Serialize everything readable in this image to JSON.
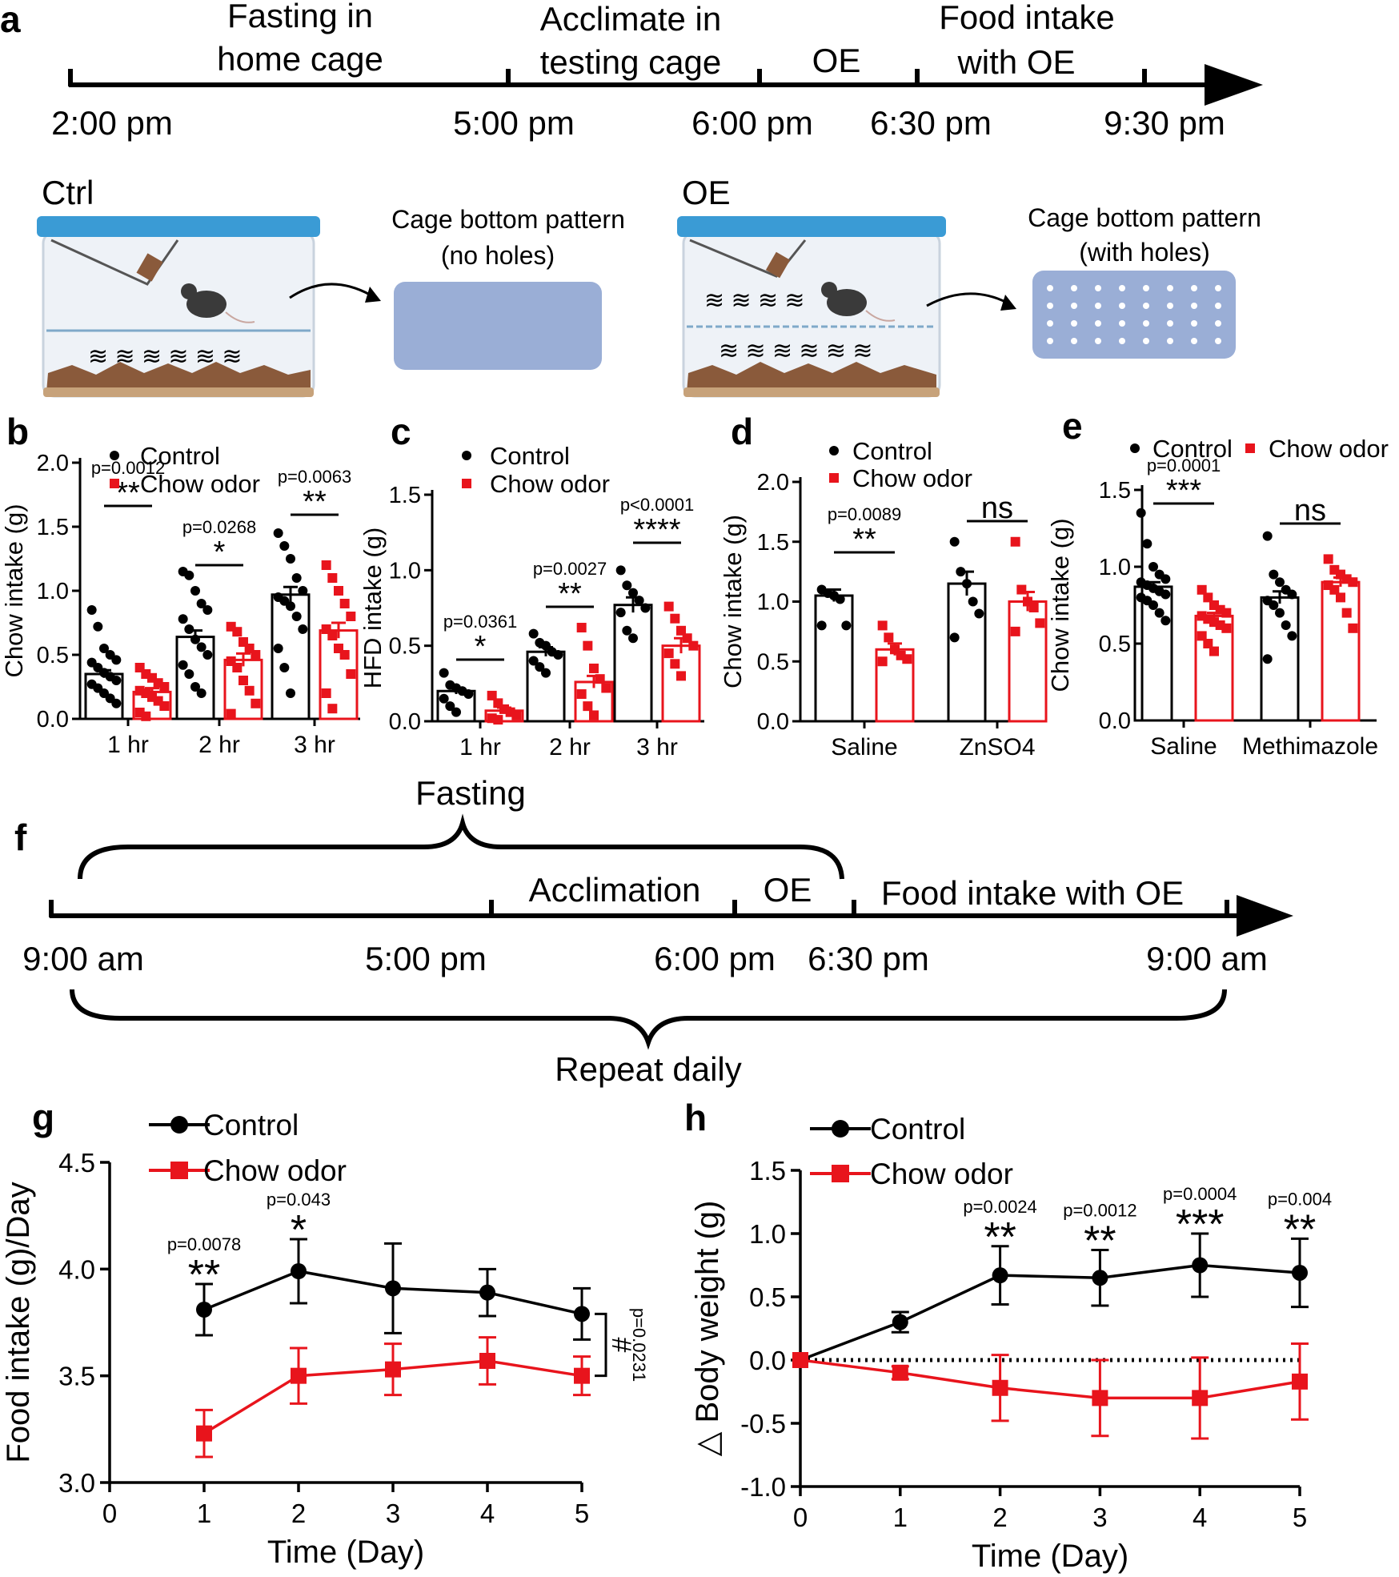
{
  "panel_a": {
    "letter": "a",
    "phases": [
      [
        "Fasting in",
        "home cage"
      ],
      [
        "Acclimate in",
        "testing cage"
      ],
      [
        "OE"
      ],
      [
        "Food intake",
        "with OE"
      ]
    ],
    "times": [
      "2:00 pm",
      "5:00 pm",
      "6:00 pm",
      "6:30 pm",
      "9:30 pm"
    ],
    "cage_ctrl_label": "Ctrl",
    "cage_oe_label": "OE",
    "pattern_ctrl": [
      "Cage bottom pattern",
      "(no holes)"
    ],
    "pattern_oe": [
      "Cage bottom pattern",
      "(with holes)"
    ],
    "colors": {
      "lid": "#3a9bd5",
      "pattern": "#9aaed6",
      "bedding": "#8a5a3b"
    }
  },
  "panel_f": {
    "letter": "f",
    "top_label": "Fasting",
    "phases": [
      "Acclimation",
      "OE",
      "Food intake with OE"
    ],
    "times": [
      "9:00 am",
      "5:00 pm",
      "6:00 pm",
      "6:30 pm",
      "9:00 am"
    ],
    "bottom_label": "Repeat daily"
  },
  "legend": {
    "control": "Control",
    "chow_odor": "Chow odor"
  },
  "colors": {
    "control": "#000000",
    "chow_odor": "#e8141c"
  },
  "chart_data": [
    {
      "id": "b",
      "letter": "b",
      "type": "bar",
      "ylabel": "Chow intake (g)",
      "ylim": [
        0,
        2.0
      ],
      "yticks": [
        "0.0",
        "0.5",
        "1.0",
        "1.5",
        "2.0"
      ],
      "categories": [
        "1 hr",
        "2 hr",
        "3 hr"
      ],
      "series": [
        {
          "name": "Control",
          "values": [
            0.35,
            0.64,
            0.97
          ]
        },
        {
          "name": "Chow odor",
          "values": [
            0.21,
            0.46,
            0.69
          ]
        }
      ],
      "errors": [
        [
          0.03,
          0.05,
          0.06
        ],
        [
          0.03,
          0.05,
          0.06
        ]
      ],
      "points": [
        [
          [
            0.85,
            0.72,
            0.55,
            0.5,
            0.46,
            0.44,
            0.4,
            0.36,
            0.33,
            0.3,
            0.27,
            0.24,
            0.2,
            0.16,
            0.12
          ],
          [
            1.15,
            1.12,
            1.0,
            0.9,
            0.85,
            0.78,
            0.7,
            0.62,
            0.56,
            0.5,
            0.42,
            0.35,
            0.25,
            0.2
          ],
          [
            1.45,
            1.35,
            1.25,
            1.1,
            1.0,
            0.95,
            0.92,
            0.88,
            0.8,
            0.7,
            0.55,
            0.4,
            0.2
          ]
        ],
        [
          [
            0.4,
            0.35,
            0.32,
            0.28,
            0.25,
            0.22,
            0.2,
            0.17,
            0.14,
            0.1,
            0.05,
            0.02
          ],
          [
            0.72,
            0.68,
            0.6,
            0.55,
            0.5,
            0.45,
            0.4,
            0.3,
            0.22,
            0.12,
            0.04
          ],
          [
            1.2,
            1.1,
            1.0,
            0.9,
            0.8,
            0.7,
            0.65,
            0.55,
            0.5,
            0.35,
            0.2,
            0.08
          ]
        ]
      ],
      "annotations": [
        {
          "group": 0,
          "p": "p=0.0012",
          "sig": "**"
        },
        {
          "group": 1,
          "p": "p=0.0268",
          "sig": "*"
        },
        {
          "group": 2,
          "p": "p=0.0063",
          "sig": "**"
        }
      ],
      "legend_position": "top-left"
    },
    {
      "id": "c",
      "letter": "c",
      "type": "bar",
      "ylabel": "HFD intake (g)",
      "ylim": [
        0,
        1.5
      ],
      "yticks": [
        "0.0",
        "0.5",
        "1.0",
        "1.5"
      ],
      "categories": [
        "1 hr",
        "2 hr",
        "3 hr"
      ],
      "series": [
        {
          "name": "Control",
          "values": [
            0.2,
            0.46,
            0.77
          ]
        },
        {
          "name": "Chow odor",
          "values": [
            0.07,
            0.26,
            0.5
          ]
        }
      ],
      "errors": [
        [
          0.02,
          0.03,
          0.05
        ],
        [
          0.02,
          0.04,
          0.05
        ]
      ],
      "points": [
        [
          [
            0.32,
            0.24,
            0.22,
            0.2,
            0.18,
            0.15,
            0.1,
            0.06
          ],
          [
            0.58,
            0.52,
            0.5,
            0.46,
            0.44,
            0.4,
            0.36,
            0.32
          ],
          [
            1.0,
            0.9,
            0.85,
            0.8,
            0.75,
            0.72,
            0.6,
            0.55
          ]
        ],
        [
          [
            0.17,
            0.12,
            0.08,
            0.06,
            0.04,
            0.02,
            0.01
          ],
          [
            0.62,
            0.5,
            0.35,
            0.28,
            0.22,
            0.18,
            0.1,
            0.04
          ],
          [
            0.76,
            0.68,
            0.6,
            0.55,
            0.5,
            0.45,
            0.38,
            0.3
          ]
        ]
      ],
      "annotations": [
        {
          "group": 0,
          "p": "p=0.0361",
          "sig": "*"
        },
        {
          "group": 1,
          "p": "p=0.0027",
          "sig": "**"
        },
        {
          "group": 2,
          "p": "p<0.0001",
          "sig": "****"
        }
      ],
      "legend_position": "top-left"
    },
    {
      "id": "d",
      "letter": "d",
      "type": "bar",
      "ylabel": "Chow intake (g)",
      "ylim": [
        0,
        2.0
      ],
      "yticks": [
        "0.0",
        "0.5",
        "1.0",
        "1.5",
        "2.0"
      ],
      "categories": [
        "Saline",
        "ZnSO4"
      ],
      "series": [
        {
          "name": "Control",
          "values": [
            1.05,
            1.15
          ]
        },
        {
          "name": "Chow odor",
          "values": [
            0.6,
            1.0
          ]
        }
      ],
      "errors": [
        [
          0.05,
          0.1
        ],
        [
          0.05,
          0.08
        ]
      ],
      "points": [
        [
          [
            1.1,
            1.07,
            1.05,
            1.02,
            0.8,
            0.8
          ],
          [
            1.5,
            1.25,
            1.15,
            1.0,
            0.9,
            0.7
          ]
        ],
        [
          [
            0.8,
            0.7,
            0.6,
            0.55,
            0.52,
            0.5
          ],
          [
            1.5,
            1.1,
            1.0,
            0.95,
            0.82,
            0.75
          ]
        ]
      ],
      "annotations": [
        {
          "group": 0,
          "p": "p=0.0089",
          "sig": "**"
        },
        {
          "group": 1,
          "p": "",
          "sig": "ns"
        }
      ],
      "legend_position": "top-left"
    },
    {
      "id": "e",
      "letter": "e",
      "type": "bar",
      "ylabel": "Chow intake (g)",
      "ylim": [
        0,
        1.5
      ],
      "yticks": [
        "0.0",
        "0.5",
        "1.0",
        "1.5"
      ],
      "categories": [
        "Saline",
        "Methimazole"
      ],
      "series": [
        {
          "name": "Control",
          "values": [
            0.87,
            0.8
          ]
        },
        {
          "name": "Chow odor",
          "values": [
            0.68,
            0.9
          ]
        }
      ],
      "errors": [
        [
          0.03,
          0.04
        ],
        [
          0.02,
          0.03
        ]
      ],
      "points": [
        [
          [
            1.35,
            1.15,
            1.0,
            0.95,
            0.92,
            0.9,
            0.88,
            0.86,
            0.84,
            0.82,
            0.8,
            0.78,
            0.75,
            0.7,
            0.65
          ],
          [
            1.2,
            0.95,
            0.9,
            0.85,
            0.82,
            0.78,
            0.75,
            0.7,
            0.62,
            0.55,
            0.4
          ]
        ],
        [
          [
            0.85,
            0.8,
            0.75,
            0.72,
            0.7,
            0.68,
            0.66,
            0.64,
            0.62,
            0.6,
            0.55,
            0.5,
            0.45
          ],
          [
            1.05,
            0.98,
            0.95,
            0.92,
            0.9,
            0.88,
            0.85,
            0.8,
            0.7,
            0.6
          ]
        ]
      ],
      "annotations": [
        {
          "group": 0,
          "p": "p=0.0001",
          "sig": "***"
        },
        {
          "group": 1,
          "p": "",
          "sig": "ns"
        }
      ],
      "legend_position": "top"
    },
    {
      "id": "g",
      "letter": "g",
      "type": "line",
      "xlabel": "Time (Day)",
      "ylabel": "Food intake (g)/Day",
      "xlim": [
        0,
        5
      ],
      "ylim": [
        3.0,
        4.5
      ],
      "xticks": [
        "0",
        "1",
        "2",
        "3",
        "4",
        "5"
      ],
      "yticks": [
        "3.0",
        "3.5",
        "4.0",
        "4.5"
      ],
      "x": [
        1,
        2,
        3,
        4,
        5
      ],
      "series": [
        {
          "name": "Control",
          "values": [
            3.81,
            3.99,
            3.91,
            3.89,
            3.79
          ],
          "errors": [
            0.12,
            0.15,
            0.21,
            0.11,
            0.12
          ]
        },
        {
          "name": "Chow odor",
          "values": [
            3.23,
            3.5,
            3.53,
            3.57,
            3.5
          ],
          "errors": [
            0.11,
            0.13,
            0.12,
            0.11,
            0.09
          ]
        }
      ],
      "annotations": [
        {
          "x": 1,
          "p": "p=0.0078",
          "sig": "**"
        },
        {
          "x": 2,
          "p": "p=0.043",
          "sig": "*"
        }
      ],
      "bracket": {
        "symbol": "#",
        "p": "p=0.0231"
      },
      "legend_position": "top-left"
    },
    {
      "id": "h",
      "letter": "h",
      "type": "line",
      "xlabel": "Time (Day)",
      "ylabel": "△ Body weight (g)",
      "xlim": [
        0,
        5
      ],
      "ylim": [
        -1.0,
        1.5
      ],
      "xticks": [
        "0",
        "1",
        "2",
        "3",
        "4",
        "5"
      ],
      "yticks": [
        "-1.0",
        "-0.5",
        "0.0",
        "0.5",
        "1.0",
        "1.5"
      ],
      "x": [
        0,
        1,
        2,
        3,
        4,
        5
      ],
      "series": [
        {
          "name": "Control",
          "values": [
            0.0,
            0.3,
            0.67,
            0.65,
            0.75,
            0.69
          ],
          "errors": [
            0.0,
            0.08,
            0.23,
            0.22,
            0.25,
            0.27
          ]
        },
        {
          "name": "Chow odor",
          "values": [
            0.0,
            -0.1,
            -0.22,
            -0.3,
            -0.3,
            -0.17
          ],
          "errors": [
            0.0,
            0.05,
            0.26,
            0.3,
            0.32,
            0.3
          ]
        }
      ],
      "annotations": [
        {
          "x": 2,
          "p": "p=0.0024",
          "sig": "**"
        },
        {
          "x": 3,
          "p": "p=0.0012",
          "sig": "**"
        },
        {
          "x": 4,
          "p": "p=0.0004",
          "sig": "***"
        },
        {
          "x": 5,
          "p": "p=0.004",
          "sig": "**"
        }
      ],
      "baseline": 0,
      "legend_position": "top-left"
    }
  ]
}
